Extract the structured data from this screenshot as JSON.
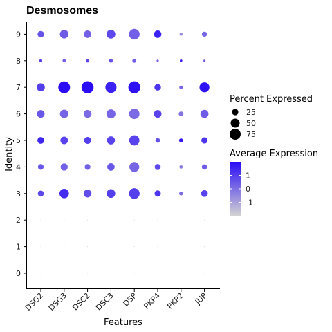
{
  "chart_data": {
    "type": "scatter",
    "subtype": "dot-plot",
    "title": "Desmosomes",
    "xlabel": "Features",
    "ylabel": "Identity",
    "features": [
      "DSG2",
      "DSG3",
      "DSC2",
      "DSC3",
      "DSP",
      "PKP4",
      "PKP2",
      "JUP"
    ],
    "identities": [
      "0",
      "1",
      "2",
      "3",
      "4",
      "5",
      "6",
      "7",
      "8",
      "9"
    ],
    "percent_expressed": [
      [
        0.2,
        0.2,
        0.2,
        0.2,
        0.2,
        0.2,
        0.2,
        0.2
      ],
      [
        0.2,
        0.2,
        0.2,
        0.2,
        0.2,
        0.2,
        0.2,
        0.2
      ],
      [
        0.3,
        0.3,
        0.3,
        0.3,
        0.3,
        0.3,
        0.3,
        0.3
      ],
      [
        22,
        55,
        38,
        46,
        70,
        24,
        9,
        28
      ],
      [
        20,
        32,
        20,
        34,
        60,
        22,
        7,
        17
      ],
      [
        28,
        35,
        30,
        40,
        64,
        13,
        10,
        24
      ],
      [
        35,
        44,
        38,
        50,
        66,
        36,
        14,
        40
      ],
      [
        40,
        85,
        90,
        76,
        88,
        26,
        8,
        60
      ],
      [
        5,
        7,
        8,
        9,
        10,
        3,
        4,
        3
      ],
      [
        26,
        46,
        34,
        48,
        70,
        34,
        6,
        16
      ]
    ],
    "average_expression": [
      [
        -1.9,
        -1.9,
        -1.9,
        -1.9,
        -1.9,
        -1.9,
        -1.9,
        -1.9
      ],
      [
        -1.9,
        -1.9,
        -1.9,
        -1.9,
        -1.9,
        -1.9,
        -1.9,
        -1.9
      ],
      [
        -1.9,
        -1.9,
        -1.9,
        -1.9,
        -1.9,
        -1.9,
        -1.9,
        -1.9
      ],
      [
        0.8,
        1.4,
        0.7,
        1.0,
        1.0,
        1.2,
        0.1,
        0.9
      ],
      [
        0.5,
        0.3,
        0.3,
        0.5,
        0.2,
        0.8,
        -0.2,
        0.4
      ],
      [
        1.5,
        0.9,
        1.0,
        0.9,
        0.9,
        0.6,
        1.8,
        1.2
      ],
      [
        0.5,
        0.2,
        0.1,
        0.2,
        0.1,
        0.9,
        -0.1,
        0.4
      ],
      [
        1.0,
        2.0,
        2.0,
        1.6,
        1.9,
        1.2,
        0.2,
        1.9
      ],
      [
        1.0,
        0.3,
        0.8,
        0.6,
        0.3,
        0.3,
        1.6,
        0.5
      ],
      [
        0.6,
        0.4,
        0.3,
        0.8,
        0.3,
        1.6,
        -0.6,
        0.2
      ]
    ],
    "size_legend": {
      "title": "Percent Expressed",
      "values": [
        25,
        50,
        75
      ],
      "labels": [
        "25",
        "50",
        "75"
      ]
    },
    "color_legend": {
      "title": "Average Expression",
      "range": [
        -2,
        2
      ],
      "ticks": [
        1,
        0,
        -1
      ],
      "labels": [
        "1",
        "0",
        "-1"
      ],
      "low_color": "#d3d3d3",
      "high_color": "#2a0df5"
    },
    "grid": false,
    "legend_position": "right"
  }
}
